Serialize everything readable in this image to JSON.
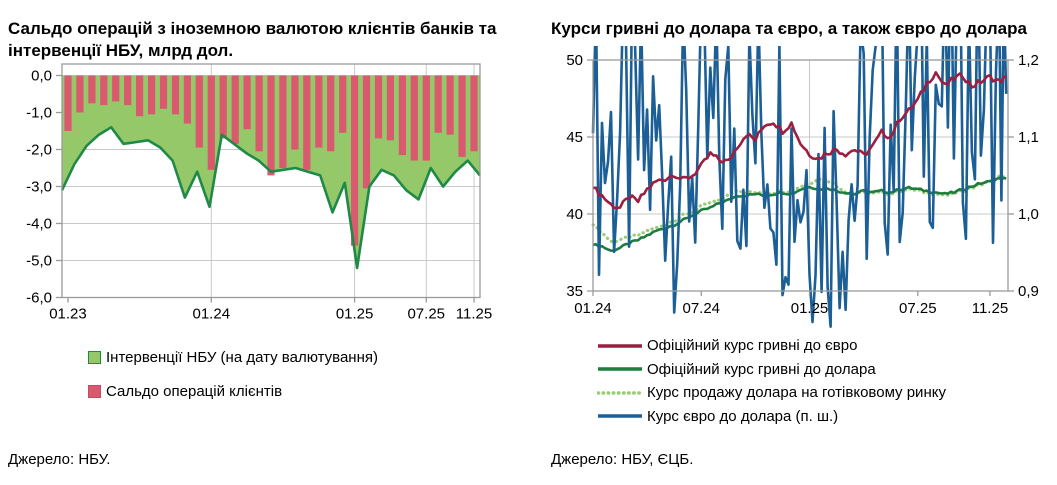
{
  "chart_data": [
    {
      "type": "bar",
      "title": "Сальдо операцій з іноземною валютою клієнтів банків та інтервенції НБУ, млрд дол.",
      "source": "Джерело: НБУ.",
      "ylabel": "млрд дол.",
      "ylim": [
        -6,
        0
      ],
      "yticks": [
        {
          "v": 0,
          "label": "0,0"
        },
        {
          "v": -1,
          "label": "-1,0"
        },
        {
          "v": -2,
          "label": "-2,0"
        },
        {
          "v": -3,
          "label": "-3,0"
        },
        {
          "v": -4,
          "label": "-4,0"
        },
        {
          "v": -5,
          "label": "-5,0"
        },
        {
          "v": -6,
          "label": "-6,0"
        }
      ],
      "xticks": [
        {
          "label": "01.23",
          "i": 0
        },
        {
          "label": "01.24",
          "i": 12
        },
        {
          "label": "01.25",
          "i": 24
        },
        {
          "label": "07.25",
          "i": 30
        },
        {
          "label": "11.25",
          "i": 34
        }
      ],
      "grid_x": [
        12,
        24,
        30,
        34
      ],
      "categories": [
        "01.23",
        "02.23",
        "03.23",
        "04.23",
        "05.23",
        "06.23",
        "07.23",
        "08.23",
        "09.23",
        "10.23",
        "11.23",
        "12.23",
        "01.24",
        "02.24",
        "03.24",
        "04.24",
        "05.24",
        "06.24",
        "07.24",
        "08.24",
        "09.24",
        "10.24",
        "11.24",
        "12.24",
        "01.25",
        "02.25",
        "03.25",
        "04.25",
        "05.25",
        "06.25",
        "07.25",
        "08.25",
        "09.25",
        "10.25",
        "11.25"
      ],
      "series": [
        {
          "name": "Інтервенції НБУ (на дату валютування)",
          "type": "area",
          "color": "#94c869",
          "line_color": "#1f8a47",
          "values": [
            -3.1,
            -2.4,
            -1.9,
            -1.6,
            -1.4,
            -1.85,
            -1.8,
            -1.75,
            -1.95,
            -2.3,
            -3.3,
            -2.6,
            -3.55,
            -1.6,
            -1.85,
            -2.1,
            -2.3,
            -2.6,
            -2.55,
            -2.5,
            -2.6,
            -2.7,
            -3.7,
            -2.9,
            -5.2,
            -3.0,
            -2.55,
            -2.7,
            -3.1,
            -3.35,
            -2.5,
            -3.0,
            -2.6,
            -2.3,
            -2.7
          ]
        },
        {
          "name": "Сальдо операцій клієнтів",
          "type": "bar",
          "color": "#d9596e",
          "edge_color": "#c64a60",
          "values": [
            -1.5,
            -1.0,
            -0.75,
            -0.8,
            -0.7,
            -0.8,
            -1.1,
            -1.05,
            -0.9,
            -1.05,
            -1.3,
            -1.95,
            -2.55,
            -1.7,
            -1.85,
            -1.45,
            -2.05,
            -2.7,
            -2.5,
            -2.0,
            -2.55,
            -1.95,
            -2.05,
            -1.55,
            -4.6,
            -3.05,
            -1.7,
            -1.75,
            -2.15,
            -2.3,
            -2.3,
            -1.55,
            -1.6,
            -2.2,
            -2.05
          ]
        }
      ]
    },
    {
      "type": "line",
      "title": "Курси гривні до долара та євро, а також євро до долара",
      "source": "Джерело: НБУ, ЄЦБ.",
      "x_unit": "months since 01.24",
      "ylim_left": [
        35,
        50
      ],
      "ylim_right": [
        0.9,
        1.2
      ],
      "yticks_left": [
        {
          "v": 50,
          "label": "50"
        },
        {
          "v": 45,
          "label": "45"
        },
        {
          "v": 40,
          "label": "40"
        },
        {
          "v": 35,
          "label": "35"
        }
      ],
      "yticks_right": [
        {
          "v": 1.2,
          "label": "1,2"
        },
        {
          "v": 1.1,
          "label": "1,1"
        },
        {
          "v": 1.0,
          "label": "1,0"
        },
        {
          "v": 0.9,
          "label": "0,9"
        }
      ],
      "xticks": [
        {
          "label": "01.24",
          "m": 0
        },
        {
          "label": "07.24",
          "m": 6
        },
        {
          "label": "01.25",
          "m": 12
        },
        {
          "label": "07.25",
          "m": 18
        },
        {
          "label": "11.25",
          "m": 22
        }
      ],
      "grid_x": [
        12
      ],
      "series": [
        {
          "name": "Офіційний курс гривні до євро",
          "axis": "left",
          "style": "solid",
          "color": "#9c1f3f",
          "jitter": 0.2,
          "points": [
            [
              0,
              41.7
            ],
            [
              0.5,
              41.2
            ],
            [
              1,
              40.6
            ],
            [
              1.5,
              40.4
            ],
            [
              2,
              41.1
            ],
            [
              2.5,
              40.8
            ],
            [
              3,
              41.6
            ],
            [
              3.5,
              42.1
            ],
            [
              4,
              42.3
            ],
            [
              4.5,
              42.6
            ],
            [
              5,
              42.2
            ],
            [
              5.5,
              42.5
            ],
            [
              6,
              43.1
            ],
            [
              6.5,
              43.9
            ],
            [
              7,
              43.5
            ],
            [
              7.5,
              43.4
            ],
            [
              8,
              44.4
            ],
            [
              8.5,
              45.2
            ],
            [
              9,
              44.8
            ],
            [
              9.5,
              45.8
            ],
            [
              10,
              46.0
            ],
            [
              10.5,
              45.4
            ],
            [
              11,
              45.9
            ],
            [
              11.5,
              44.6
            ],
            [
              12,
              43.9
            ],
            [
              12.5,
              43.6
            ],
            [
              13,
              44.0
            ],
            [
              13.5,
              44.2
            ],
            [
              14,
              43.9
            ],
            [
              14.5,
              44.2
            ],
            [
              15,
              43.8
            ],
            [
              15.5,
              44.4
            ],
            [
              16,
              45.3
            ],
            [
              16.5,
              45.0
            ],
            [
              17,
              46.2
            ],
            [
              17.5,
              46.7
            ],
            [
              18,
              47.4
            ],
            [
              18.5,
              48.5
            ],
            [
              19,
              49.2
            ],
            [
              19.5,
              48.3
            ],
            [
              20,
              48.8
            ],
            [
              20.5,
              49.0
            ],
            [
              21,
              48.3
            ],
            [
              21.5,
              48.6
            ],
            [
              22,
              48.9
            ],
            [
              22.5,
              48.6
            ],
            [
              22.9,
              48.9
            ]
          ]
        },
        {
          "name": "Офіційний курс гривні до долара",
          "axis": "left",
          "style": "solid",
          "color": "#1e7d3c",
          "jitter": 0.08,
          "points": [
            [
              0,
              38.0
            ],
            [
              0.5,
              37.9
            ],
            [
              1,
              37.6
            ],
            [
              1.5,
              37.8
            ],
            [
              2,
              38.1
            ],
            [
              2.5,
              38.3
            ],
            [
              3,
              38.6
            ],
            [
              3.5,
              38.9
            ],
            [
              4,
              39.1
            ],
            [
              4.5,
              39.3
            ],
            [
              5,
              39.6
            ],
            [
              5.5,
              39.9
            ],
            [
              6,
              40.2
            ],
            [
              6.5,
              40.4
            ],
            [
              7,
              40.7
            ],
            [
              7.5,
              40.9
            ],
            [
              8,
              41.2
            ],
            [
              8.5,
              41.2
            ],
            [
              9,
              41.3
            ],
            [
              9.5,
              41.2
            ],
            [
              10,
              41.3
            ],
            [
              10.5,
              41.4
            ],
            [
              11,
              41.3
            ],
            [
              11.5,
              41.6
            ],
            [
              12,
              41.8
            ],
            [
              12.5,
              41.6
            ],
            [
              13,
              41.7
            ],
            [
              13.5,
              41.5
            ],
            [
              14,
              41.4
            ],
            [
              14.5,
              41.3
            ],
            [
              15,
              41.5
            ],
            [
              15.5,
              41.4
            ],
            [
              16,
              41.5
            ],
            [
              16.5,
              41.4
            ],
            [
              17,
              41.6
            ],
            [
              17.5,
              41.7
            ],
            [
              18,
              41.6
            ],
            [
              18.5,
              41.5
            ],
            [
              19,
              41.4
            ],
            [
              19.5,
              41.3
            ],
            [
              20,
              41.4
            ],
            [
              20.5,
              41.6
            ],
            [
              21,
              41.8
            ],
            [
              21.5,
              42.0
            ],
            [
              22,
              42.1
            ],
            [
              22.5,
              42.3
            ],
            [
              22.9,
              42.3
            ]
          ]
        },
        {
          "name": "Курс продажу долара на готівковому ринку",
          "axis": "left",
          "style": "dotted",
          "color": "#97cd75",
          "jitter": 0.1,
          "points": [
            [
              0,
              39.3
            ],
            [
              0.5,
              38.8
            ],
            [
              1,
              38.2
            ],
            [
              1.5,
              38.3
            ],
            [
              2,
              38.5
            ],
            [
              2.5,
              38.6
            ],
            [
              3,
              38.9
            ],
            [
              3.5,
              39.1
            ],
            [
              4,
              39.3
            ],
            [
              4.5,
              39.6
            ],
            [
              5,
              39.9
            ],
            [
              5.5,
              40.1
            ],
            [
              6,
              40.5
            ],
            [
              6.5,
              40.7
            ],
            [
              7,
              40.9
            ],
            [
              7.5,
              41.2
            ],
            [
              8,
              41.6
            ],
            [
              8.5,
              41.4
            ],
            [
              9,
              41.4
            ],
            [
              9.5,
              41.3
            ],
            [
              10,
              41.4
            ],
            [
              10.5,
              41.5
            ],
            [
              11,
              41.5
            ],
            [
              11.5,
              41.8
            ],
            [
              12,
              42.0
            ],
            [
              12.5,
              42.3
            ],
            [
              13,
              42.2
            ],
            [
              13.5,
              41.8
            ],
            [
              14,
              41.5
            ],
            [
              14.5,
              41.3
            ],
            [
              15,
              41.4
            ],
            [
              15.5,
              41.3
            ],
            [
              16,
              41.4
            ],
            [
              16.5,
              41.3
            ],
            [
              17,
              41.5
            ],
            [
              17.5,
              41.6
            ],
            [
              18,
              41.5
            ],
            [
              18.5,
              41.4
            ],
            [
              19,
              41.3
            ],
            [
              19.5,
              41.2
            ],
            [
              20,
              41.3
            ],
            [
              20.5,
              41.5
            ],
            [
              21,
              41.7
            ],
            [
              21.5,
              41.9
            ],
            [
              22,
              42.1
            ],
            [
              22.5,
              42.4
            ],
            [
              22.9,
              42.4
            ]
          ]
        },
        {
          "name": "Курс євро до долара (п. ш.)",
          "axis": "right",
          "style": "solid",
          "color": "#1c5f96",
          "jitter": 0.2,
          "points": [
            [
              0,
              1.105
            ],
            [
              0.5,
              1.095
            ],
            [
              1,
              1.082
            ],
            [
              1.5,
              1.09
            ],
            [
              2,
              1.086
            ],
            [
              2.5,
              1.094
            ],
            [
              3,
              1.078
            ],
            [
              3.5,
              1.073
            ],
            [
              4,
              1.085
            ],
            [
              4.5,
              1.072
            ],
            [
              5,
              1.068
            ],
            [
              5.5,
              1.08
            ],
            [
              6,
              1.088
            ],
            [
              6.5,
              1.083
            ],
            [
              7,
              1.092
            ],
            [
              7.5,
              1.1
            ],
            [
              8,
              1.108
            ],
            [
              8.5,
              1.112
            ],
            [
              9,
              1.104
            ],
            [
              9.5,
              1.118
            ],
            [
              10,
              1.108
            ],
            [
              10.5,
              1.088
            ],
            [
              11,
              1.072
            ],
            [
              11.5,
              1.058
            ],
            [
              12,
              1.052
            ],
            [
              12.5,
              1.04
            ],
            [
              13,
              1.032
            ],
            [
              13.5,
              1.044
            ],
            [
              14,
              1.038
            ],
            [
              14.5,
              1.048
            ],
            [
              15,
              1.082
            ],
            [
              15.5,
              1.092
            ],
            [
              16,
              1.135
            ],
            [
              16.5,
              1.12
            ],
            [
              17,
              1.132
            ],
            [
              17.5,
              1.142
            ],
            [
              18,
              1.152
            ],
            [
              18.5,
              1.172
            ],
            [
              19,
              1.168
            ],
            [
              19.5,
              1.145
            ],
            [
              20,
              1.165
            ],
            [
              20.5,
              1.172
            ],
            [
              21,
              1.158
            ],
            [
              21.5,
              1.168
            ],
            [
              22,
              1.152
            ],
            [
              22.5,
              1.162
            ],
            [
              22.9,
              1.156
            ]
          ]
        }
      ]
    }
  ],
  "style": {
    "grid_color": "#c9c9c9",
    "frame_color": "#9a9a9a",
    "text_color": "#000000"
  }
}
